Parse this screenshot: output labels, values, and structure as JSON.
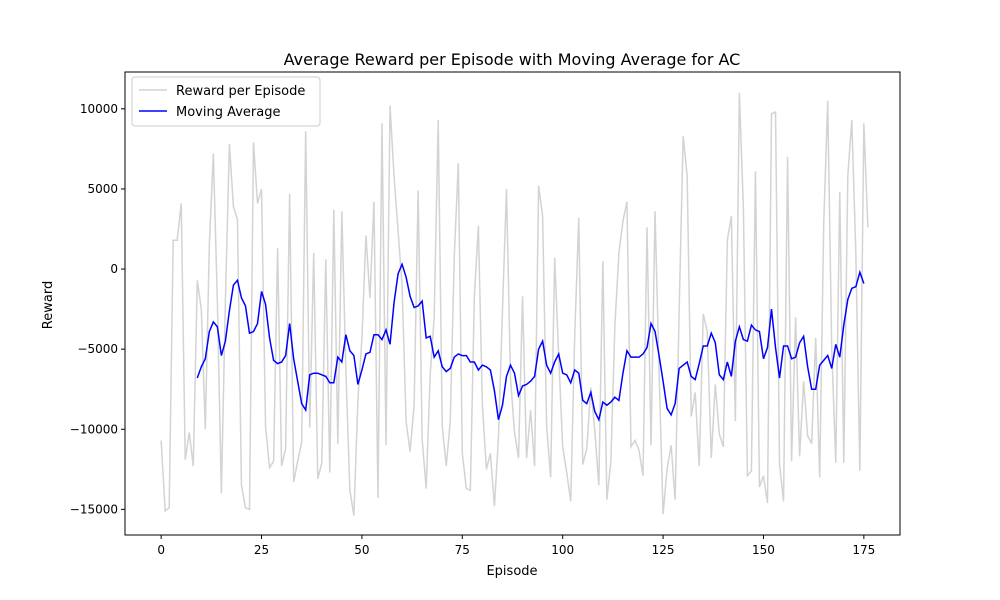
{
  "chart_data": {
    "type": "line",
    "title": "Average Reward per Episode with Moving Average for AC",
    "xlabel": "Episode",
    "ylabel": "Reward",
    "xlim": [
      -9,
      184
    ],
    "ylim": [
      -16600,
      12300
    ],
    "xticks": [
      0,
      25,
      50,
      75,
      100,
      125,
      150,
      175
    ],
    "yticks": [
      -15000,
      -10000,
      -5000,
      0,
      5000,
      10000
    ],
    "ytick_labels": [
      "−15000",
      "−10000",
      "−5000",
      "0",
      "5000",
      "10000"
    ],
    "grid": false,
    "legend_position": "top-left",
    "series": [
      {
        "name": "Reward per Episode",
        "color": "#d3d3d3",
        "x_start": 0,
        "values": [
          -10700,
          -15100,
          -14900,
          1800,
          1800,
          4100,
          -11900,
          -10200,
          -12300,
          -700,
          -2500,
          -10000,
          1500,
          7200,
          -2000,
          -14000,
          -2000,
          7800,
          3900,
          3100,
          -13500,
          -14900,
          -15000,
          7900,
          4100,
          5000,
          -9800,
          -12400,
          -12000,
          1300,
          -12300,
          -11200,
          4700,
          -13300,
          -12000,
          -10800,
          8600,
          -9900,
          1000,
          -13100,
          -12100,
          600,
          -12700,
          3700,
          -10900,
          3600,
          -6300,
          -13800,
          -15400,
          -8200,
          -4300,
          2100,
          -1800,
          4200,
          -14300,
          9100,
          -11000,
          10200,
          5800,
          2400,
          -1000,
          -9500,
          -11400,
          -8500,
          4900,
          -10600,
          -13700,
          -6600,
          -3000,
          9300,
          -9800,
          -12300,
          -9500,
          800,
          6600,
          -11500,
          -13700,
          -13800,
          -1700,
          2700,
          -8500,
          -12500,
          -11500,
          -14800,
          -10500,
          -2600,
          5000,
          -6800,
          -10200,
          -11800,
          -1700,
          -11800,
          -8800,
          -12300,
          5200,
          3300,
          -9800,
          -13000,
          700,
          -5400,
          -11100,
          -12700,
          -14500,
          -4100,
          3200,
          -12200,
          -11200,
          -7400,
          -10100,
          -13500,
          500,
          -14400,
          -12000,
          -3500,
          1000,
          3000,
          4200,
          -11100,
          -10700,
          -11300,
          -12900,
          2600,
          -11000,
          3600,
          -6400,
          -15300,
          -12500,
          -11000,
          -14400,
          -2600,
          8300,
          5800,
          -9200,
          -7700,
          -12300,
          -2800,
          -3900,
          -11800,
          -7200,
          -10300,
          -11100,
          1800,
          3300,
          -9500,
          11000,
          3800,
          -12900,
          -12600,
          6100,
          -13600,
          -12900,
          -14600,
          9700,
          9800,
          -12200,
          -14500,
          7000,
          -12000,
          -3000,
          -11700,
          -7000,
          -10400,
          -10900,
          -4300,
          -13000,
          2800,
          10500,
          -5000,
          -12100,
          4800,
          -12100,
          5800,
          9300,
          1000,
          -12600,
          9100,
          2600
        ]
      },
      {
        "name": "Moving Average",
        "color": "#0000ff",
        "x_start": 9,
        "values": [
          -6800,
          -6100,
          -5600,
          -3900,
          -3300,
          -3600,
          -5400,
          -4500,
          -2600,
          -1000,
          -700,
          -1800,
          -2300,
          -4000,
          -3900,
          -3400,
          -1400,
          -2200,
          -4300,
          -5700,
          -5900,
          -5800,
          -5400,
          -3400,
          -5600,
          -7000,
          -8400,
          -8800,
          -6600,
          -6500,
          -6500,
          -6600,
          -6700,
          -7100,
          -7100,
          -5500,
          -5800,
          -4100,
          -5100,
          -5400,
          -7200,
          -6300,
          -5300,
          -5200,
          -4100,
          -4100,
          -4400,
          -3800,
          -4700,
          -2100,
          -300,
          300,
          -500,
          -1700,
          -2400,
          -2300,
          -2000,
          -4300,
          -4200,
          -5500,
          -5100,
          -6100,
          -6400,
          -6200,
          -5500,
          -5300,
          -5400,
          -5400,
          -5800,
          -5800,
          -6300,
          -6000,
          -6100,
          -6300,
          -7600,
          -9400,
          -8500,
          -6700,
          -6000,
          -6500,
          -7900,
          -7300,
          -7200,
          -7000,
          -6700,
          -5000,
          -4500,
          -6000,
          -6500,
          -5800,
          -5300,
          -6500,
          -6600,
          -7100,
          -6300,
          -6500,
          -8200,
          -8400,
          -7700,
          -8900,
          -9400,
          -8300,
          -8500,
          -8300,
          -8000,
          -8200,
          -6500,
          -5100,
          -5500,
          -5500,
          -5500,
          -5300,
          -4900,
          -3400,
          -3900,
          -5400,
          -7000,
          -8700,
          -9100,
          -8400,
          -6200,
          -6000,
          -5800,
          -6700,
          -6900,
          -5900,
          -4800,
          -4800,
          -4000,
          -4600,
          -6600,
          -6900,
          -5800,
          -6700,
          -4500,
          -3600,
          -4400,
          -4500,
          -3500,
          -3800,
          -3900,
          -5600,
          -4900,
          -2500,
          -4900,
          -6800,
          -4800,
          -4800,
          -5600,
          -5500,
          -4600,
          -4200,
          -6100,
          -7500,
          -7500,
          -6000,
          -5700,
          -5400,
          -6200,
          -4700,
          -5500,
          -3500,
          -1900,
          -1200,
          -1100,
          -200,
          -900
        ]
      }
    ]
  }
}
